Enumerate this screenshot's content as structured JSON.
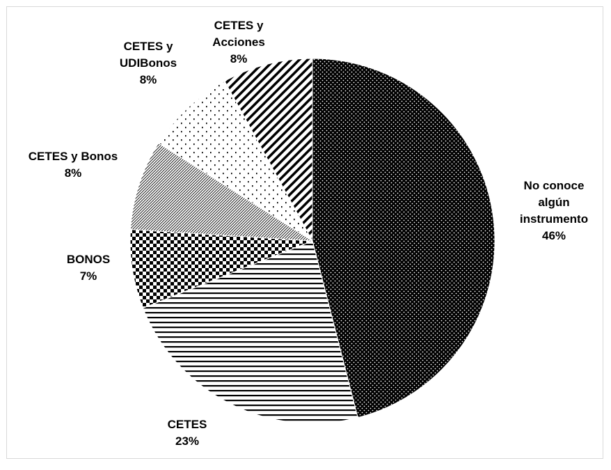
{
  "chart_data": {
    "type": "pie",
    "title": "",
    "slices": [
      {
        "label_lines": [
          "No conoce",
          "algún",
          "instrumento"
        ],
        "pct_label": "46%",
        "value": 46,
        "pattern": "dots-dark"
      },
      {
        "label_lines": [
          "CETES"
        ],
        "pct_label": "23%",
        "value": 23,
        "pattern": "horizontal-lines"
      },
      {
        "label_lines": [
          "BONOS"
        ],
        "pct_label": "7%",
        "value": 7,
        "pattern": "checkerboard"
      },
      {
        "label_lines": [
          "CETES y Bonos"
        ],
        "pct_label": "8%",
        "value": 8,
        "pattern": "fine-diagonal"
      },
      {
        "label_lines": [
          "CETES y",
          "UDIBonos"
        ],
        "pct_label": "8%",
        "value": 8,
        "pattern": "sparse-dots"
      },
      {
        "label_lines": [
          "CETES y",
          "Acciones"
        ],
        "pct_label": "8%",
        "value": 8,
        "pattern": "wide-diagonal"
      }
    ],
    "start_angle": "12 o'clock",
    "direction": "clockwise",
    "colors": {
      "fill": "#000000",
      "background": "#ffffff"
    }
  }
}
